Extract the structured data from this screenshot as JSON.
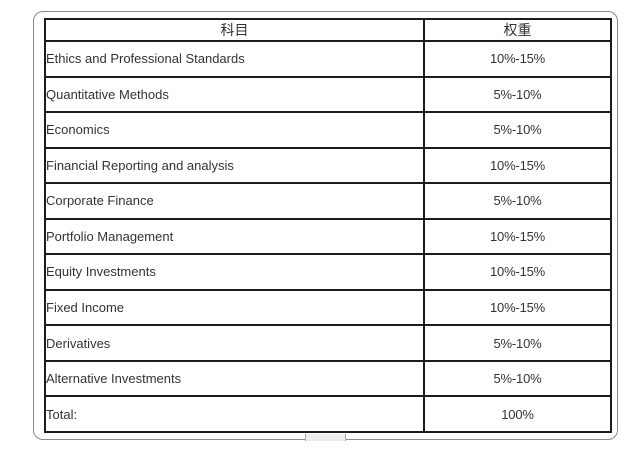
{
  "chart_data": {
    "type": "table",
    "columns": [
      "科目",
      "权重"
    ],
    "rows": [
      [
        "Ethics and Professional Standards",
        "10%-15%"
      ],
      [
        "Quantitative Methods",
        "5%-10%"
      ],
      [
        "Economics",
        "5%-10%"
      ],
      [
        "Financial Reporting and analysis",
        "10%-15%"
      ],
      [
        "Corporate Finance",
        "5%-10%"
      ],
      [
        "Portfolio Management",
        "10%-15%"
      ],
      [
        "Equity Investments",
        "10%-15%"
      ],
      [
        "Fixed Income",
        "10%-15%"
      ],
      [
        "Derivatives",
        "5%-10%"
      ],
      [
        "Alternative Investments",
        "5%-10%"
      ],
      [
        "Total:",
        "100%"
      ]
    ],
    "title": "",
    "layout_hints": {
      "header_align": "center",
      "subject_align": "left",
      "weight_align": "center",
      "grid": "on"
    }
  },
  "colors": {
    "table_border": "#1c1c1c",
    "frame_border": "#8a8a8a",
    "text": "#333333",
    "background": "#ffffff",
    "handle_fill": "#ededed",
    "handle_edge": "#a9a9a9"
  }
}
